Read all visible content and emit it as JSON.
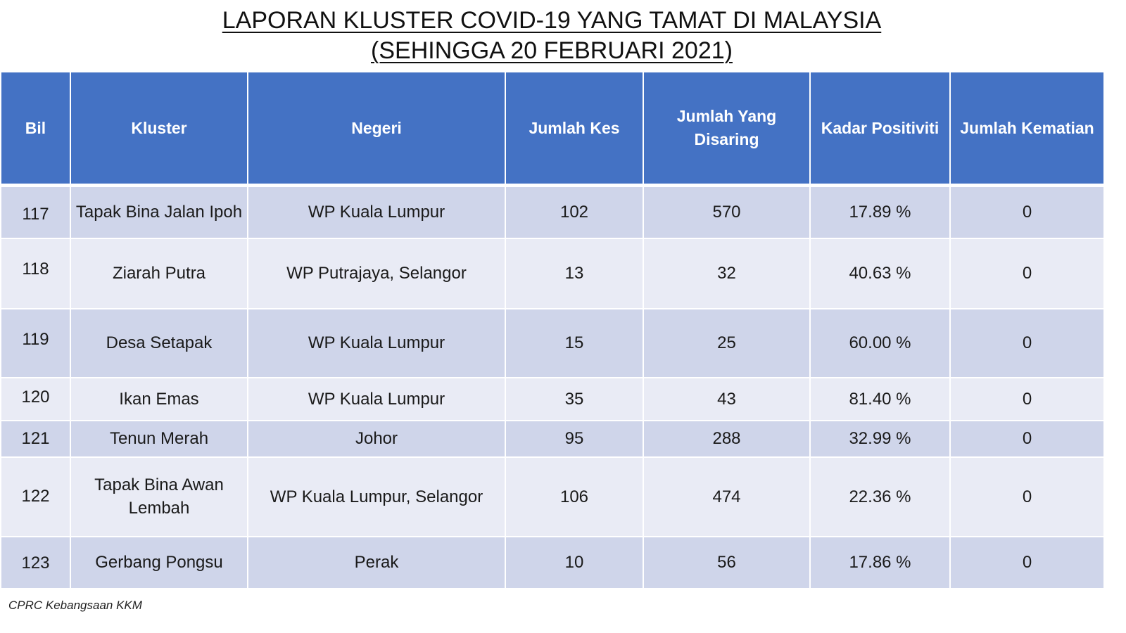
{
  "title": {
    "line1": "LAPORAN KLUSTER COVID-19 YANG TAMAT DI MALAYSIA",
    "line2": "(SEHINGGA  20 FEBRUARI 2021)"
  },
  "table": {
    "headers": {
      "bil": "Bil",
      "kluster": "Kluster",
      "negeri": "Negeri",
      "jumlah_kes": "Jumlah Kes",
      "jumlah_disaring": "Jumlah Yang Disaring",
      "kadar_positiviti": "Kadar Positiviti",
      "jumlah_kematian": "Jumlah Kematian"
    },
    "rows": [
      {
        "bil": "117",
        "kluster": "Tapak Bina Jalan Ipoh",
        "negeri": "WP Kuala Lumpur",
        "kes": "102",
        "disaring": "570",
        "positiviti": "17.89 %",
        "kematian": "0"
      },
      {
        "bil": "118",
        "kluster": "Ziarah Putra",
        "negeri": "WP Putrajaya, Selangor",
        "kes": "13",
        "disaring": "32",
        "positiviti": "40.63 %",
        "kematian": "0"
      },
      {
        "bil": "119",
        "kluster": "Desa Setapak",
        "negeri": "WP Kuala Lumpur",
        "kes": "15",
        "disaring": "25",
        "positiviti": "60.00 %",
        "kematian": "0"
      },
      {
        "bil": "120",
        "kluster": "Ikan Emas",
        "negeri": "WP Kuala Lumpur",
        "kes": "35",
        "disaring": "43",
        "positiviti": "81.40 %",
        "kematian": "0"
      },
      {
        "bil": "121",
        "kluster": "Tenun Merah",
        "negeri": "Johor",
        "kes": "95",
        "disaring": "288",
        "positiviti": "32.99 %",
        "kematian": "0"
      },
      {
        "bil": "122",
        "kluster": "Tapak Bina Awan Lembah",
        "negeri": "WP Kuala Lumpur, Selangor",
        "kes": "106",
        "disaring": "474",
        "positiviti": "22.36 %",
        "kematian": "0"
      },
      {
        "bil": "123",
        "kluster": "Gerbang Pongsu",
        "negeri": "Perak",
        "kes": "10",
        "disaring": "56",
        "positiviti": "17.86 %",
        "kematian": "0"
      }
    ]
  },
  "footer": {
    "source": "CPRC Kebangsaan KKM"
  }
}
